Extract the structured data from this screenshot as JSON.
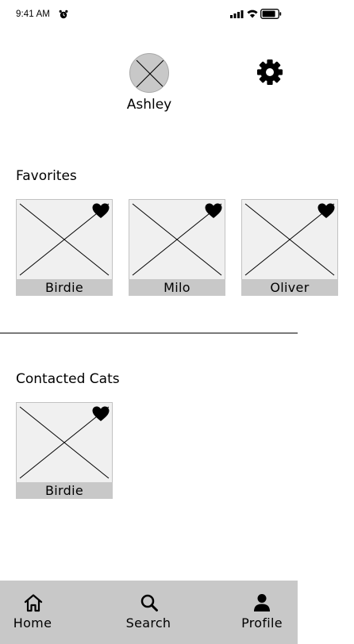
{
  "status_bar": {
    "time": "9:41 AM",
    "icons": [
      "alarm-icon",
      "cellular-signal-icon",
      "wifi-icon",
      "battery-icon"
    ]
  },
  "profile": {
    "name": "Ashley",
    "avatar": "avatar-placeholder-icon",
    "settings_icon": "gear-icon"
  },
  "favorites": {
    "title": "Favorites",
    "cards": [
      {
        "name": "Birdie",
        "icon": "heart-icon"
      },
      {
        "name": "Milo",
        "icon": "heart-icon"
      },
      {
        "name": "Oliver",
        "icon": "heart-icon"
      }
    ]
  },
  "contacted": {
    "title": "Contacted Cats",
    "cards": [
      {
        "name": "Birdie",
        "icon": "heart-icon"
      }
    ]
  },
  "tab_bar": {
    "tabs": [
      {
        "label": "Home",
        "icon": "home-icon"
      },
      {
        "label": "Search",
        "icon": "search-icon"
      },
      {
        "label": "Profile",
        "icon": "person-icon"
      }
    ]
  },
  "colors": {
    "placeholder_fill": "#f0f0f0",
    "label_bar": "#c8c8c8",
    "tab_bar": "#c8c8c8",
    "divider": "#7a7a7a"
  }
}
